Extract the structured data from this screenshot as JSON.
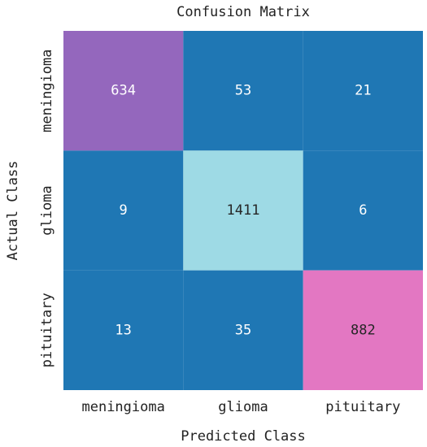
{
  "chart_data": {
    "type": "heatmap",
    "title": "Confusion Matrix",
    "x_label": "Predicted Class",
    "y_label": "Actual Class",
    "x_categories": [
      "meningioma",
      "glioma",
      "pituitary"
    ],
    "y_categories": [
      "meningioma",
      "glioma",
      "pituitary"
    ],
    "values": [
      [
        634,
        53,
        21
      ],
      [
        9,
        1411,
        6
      ],
      [
        13,
        35,
        882
      ]
    ],
    "cell_colors": [
      [
        "#9467bd",
        "#1f77b4",
        "#1f77b4"
      ],
      [
        "#1f77b4",
        "#9edae5",
        "#1f77b4"
      ],
      [
        "#1f77b4",
        "#1f77b4",
        "#e377c2"
      ]
    ]
  }
}
